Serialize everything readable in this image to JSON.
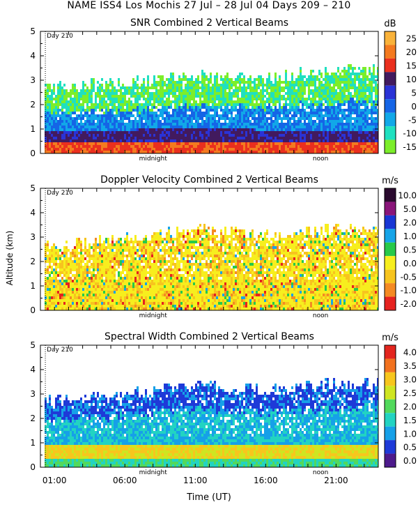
{
  "figure": {
    "title": "NAME ISS4 Los Mochis  27 Jul – 28 Jul 04 Days 209 – 210",
    "x_axis_label": "Time (UT)",
    "y_axis_label": "Altitude (km)",
    "x_tick_labels": [
      "01:00",
      "06:00",
      "11:00",
      "16:00",
      "21:00"
    ],
    "x_markers": [
      "midnight",
      "noon"
    ],
    "day_marker": "Day 210"
  },
  "chart_data": [
    {
      "type": "heatmap",
      "title": "SNR Combined 2 Vertical Beams",
      "colorbar_unit": "dB",
      "colorbar_labels": [
        "25",
        "20",
        "15",
        "10",
        "5",
        "0",
        "-5",
        "-10",
        "-15"
      ],
      "colorbar_colors": [
        "#f9b23a",
        "#f47a1f",
        "#ea2f1e",
        "#421a5e",
        "#2a33d6",
        "#1565e6",
        "#11a8e8",
        "#1fe0c0",
        "#7cee2a"
      ],
      "ylim": [
        0,
        5
      ],
      "y_ticks": [
        "0",
        "1",
        "2",
        "3",
        "4",
        "5"
      ],
      "xlim_hours": [
        0,
        24
      ],
      "x": [
        "01:00",
        "06:00",
        "11:00",
        "16:00",
        "21:00"
      ],
      "echo_top_km": [
        2.7,
        2.8,
        3.2,
        3.0,
        3.4
      ],
      "surface_layer_top_km": [
        0.9,
        0.9,
        1.0,
        0.9,
        0.9
      ]
    },
    {
      "type": "heatmap",
      "title": "Doppler Velocity Combined 2 Vertical Beams",
      "colorbar_unit": "m/s",
      "colorbar_labels": [
        "10.0",
        "5.0",
        "2.0",
        "1.0",
        "0.5",
        "0.0",
        "-0.5",
        "-1.0",
        "-2.0"
      ],
      "colorbar_colors": [
        "#2a0a2e",
        "#8a157a",
        "#1836d4",
        "#16a4e8",
        "#27c94a",
        "#f7ee1e",
        "#f7c41e",
        "#f48a22",
        "#e6221f"
      ],
      "ylim": [
        0,
        5
      ],
      "y_ticks": [
        "0",
        "1",
        "2",
        "3",
        "4",
        "5"
      ],
      "xlim_hours": [
        0,
        24
      ],
      "x": [
        "01:00",
        "06:00",
        "11:00",
        "16:00",
        "21:00"
      ],
      "echo_top_km": [
        2.6,
        2.9,
        3.3,
        3.0,
        3.3
      ]
    },
    {
      "type": "heatmap",
      "title": "Spectral Width Combined 2 Vertical Beams",
      "colorbar_unit": "m/s",
      "colorbar_labels": [
        "4.0",
        "3.5",
        "3.0",
        "2.5",
        "2.0",
        "1.5",
        "1.0",
        "0.5",
        "0.0"
      ],
      "colorbar_colors": [
        "#e3251e",
        "#f2721f",
        "#f7c61d",
        "#cfe521",
        "#52d95c",
        "#22d3c2",
        "#16a0e8",
        "#1e3ad8",
        "#4d1a8c"
      ],
      "ylim": [
        0,
        5
      ],
      "y_ticks": [
        "0",
        "1",
        "2",
        "3",
        "4",
        "5"
      ],
      "xlim_hours": [
        0,
        24
      ],
      "x": [
        "01:00",
        "06:00",
        "11:00",
        "16:00",
        "21:00"
      ],
      "echo_top_km": [
        2.7,
        2.9,
        3.3,
        3.1,
        3.4
      ]
    }
  ]
}
